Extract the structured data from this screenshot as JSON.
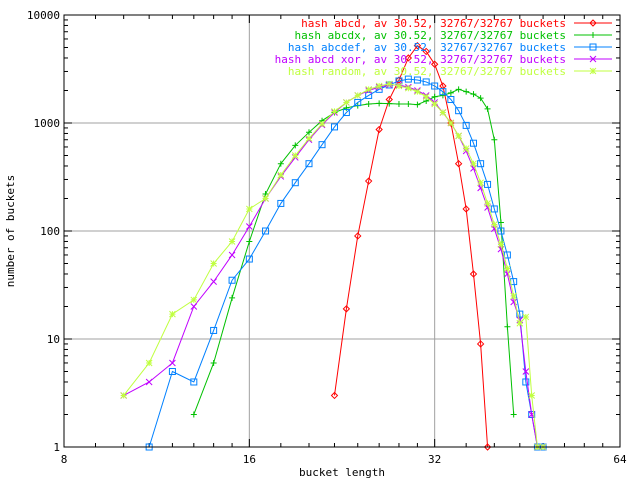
{
  "chart_data": {
    "type": "line",
    "title": "",
    "xlabel": "bucket length",
    "ylabel": "number of buckets",
    "x_scale": "log2",
    "y_scale": "log10",
    "xlim": [
      8,
      64
    ],
    "ylim": [
      1,
      10000
    ],
    "x_ticks": [
      {
        "value": 8,
        "label": "8"
      },
      {
        "value": 16,
        "label": "16"
      },
      {
        "value": 32,
        "label": "32"
      },
      {
        "value": 64,
        "label": "64"
      }
    ],
    "y_ticks": [
      {
        "value": 1,
        "label": "1"
      },
      {
        "value": 10,
        "label": "10"
      },
      {
        "value": 100,
        "label": "100"
      },
      {
        "value": 1000,
        "label": "1000"
      },
      {
        "value": 10000,
        "label": "10000"
      }
    ],
    "grid": true,
    "legend_position": "top-right",
    "series": [
      {
        "name": "hash abcd, av 30.52, 32767/32767 buckets",
        "color": "#ff0000",
        "marker": "diamond",
        "points": [
          [
            22,
            3
          ],
          [
            23,
            19
          ],
          [
            24,
            90
          ],
          [
            25,
            290
          ],
          [
            26,
            870
          ],
          [
            27,
            1650
          ],
          [
            28,
            2500
          ],
          [
            29,
            4000
          ],
          [
            30,
            5200
          ],
          [
            31,
            4600
          ],
          [
            32,
            3500
          ],
          [
            33,
            2200
          ],
          [
            34,
            1000
          ],
          [
            35,
            420
          ],
          [
            36,
            160
          ],
          [
            37,
            40
          ],
          [
            38,
            9
          ],
          [
            39,
            1
          ]
        ]
      },
      {
        "name": "hash abcdx, av 30.52, 32767/32767 buckets",
        "color": "#00c000",
        "marker": "plus",
        "points": [
          [
            13,
            2
          ],
          [
            14,
            6
          ],
          [
            15,
            24
          ],
          [
            16,
            80
          ],
          [
            17,
            220
          ],
          [
            18,
            420
          ],
          [
            19,
            620
          ],
          [
            20,
            820
          ],
          [
            21,
            1050
          ],
          [
            22,
            1250
          ],
          [
            23,
            1380
          ],
          [
            24,
            1450
          ],
          [
            25,
            1500
          ],
          [
            26,
            1520
          ],
          [
            27,
            1510
          ],
          [
            28,
            1500
          ],
          [
            29,
            1500
          ],
          [
            30,
            1480
          ],
          [
            31,
            1600
          ],
          [
            32,
            1750
          ],
          [
            33,
            1800
          ],
          [
            34,
            1900
          ],
          [
            35,
            2050
          ],
          [
            36,
            1950
          ],
          [
            37,
            1850
          ],
          [
            38,
            1700
          ],
          [
            39,
            1350
          ],
          [
            40,
            700
          ],
          [
            41,
            120
          ],
          [
            42,
            13
          ],
          [
            43,
            2
          ]
        ]
      },
      {
        "name": "hash abcdef, av 30.52, 32767/32767 buckets",
        "color": "#0080ff",
        "marker": "square",
        "points": [
          [
            11,
            1
          ],
          [
            12,
            5
          ],
          [
            13,
            4
          ],
          [
            14,
            12
          ],
          [
            15,
            35
          ],
          [
            16,
            55
          ],
          [
            17,
            100
          ],
          [
            18,
            180
          ],
          [
            19,
            280
          ],
          [
            20,
            420
          ],
          [
            21,
            630
          ],
          [
            22,
            920
          ],
          [
            23,
            1250
          ],
          [
            24,
            1550
          ],
          [
            25,
            1800
          ],
          [
            26,
            2050
          ],
          [
            27,
            2250
          ],
          [
            28,
            2450
          ],
          [
            29,
            2550
          ],
          [
            30,
            2500
          ],
          [
            31,
            2400
          ],
          [
            32,
            2200
          ],
          [
            33,
            1950
          ],
          [
            34,
            1650
          ],
          [
            35,
            1300
          ],
          [
            36,
            950
          ],
          [
            37,
            650
          ],
          [
            38,
            420
          ],
          [
            39,
            270
          ],
          [
            40,
            160
          ],
          [
            41,
            100
          ],
          [
            42,
            60
          ],
          [
            43,
            34
          ],
          [
            44,
            17
          ],
          [
            45,
            4
          ],
          [
            46,
            2
          ],
          [
            47,
            1
          ],
          [
            48,
            1
          ]
        ]
      },
      {
        "name": "hash abcd xor, av 30.52, 32767/32767 buckets",
        "color": "#c000ff",
        "marker": "cross",
        "points": [
          [
            10,
            3
          ],
          [
            11,
            4
          ],
          [
            12,
            6
          ],
          [
            13,
            20
          ],
          [
            14,
            34
          ],
          [
            15,
            60
          ],
          [
            16,
            110
          ],
          [
            17,
            200
          ],
          [
            18,
            320
          ],
          [
            19,
            480
          ],
          [
            20,
            700
          ],
          [
            21,
            960
          ],
          [
            22,
            1250
          ],
          [
            23,
            1550
          ],
          [
            24,
            1800
          ],
          [
            25,
            2000
          ],
          [
            26,
            2150
          ],
          [
            27,
            2250
          ],
          [
            28,
            2250
          ],
          [
            29,
            2150
          ],
          [
            30,
            2000
          ],
          [
            31,
            1800
          ],
          [
            32,
            1550
          ],
          [
            33,
            1250
          ],
          [
            34,
            1000
          ],
          [
            35,
            760
          ],
          [
            36,
            550
          ],
          [
            37,
            380
          ],
          [
            38,
            250
          ],
          [
            39,
            165
          ],
          [
            40,
            105
          ],
          [
            41,
            68
          ],
          [
            42,
            40
          ],
          [
            43,
            22
          ],
          [
            44,
            15
          ],
          [
            45,
            5
          ],
          [
            46,
            2
          ],
          [
            47,
            1
          ],
          [
            48,
            1
          ]
        ]
      },
      {
        "name": "hash random, av 30.52, 32767/32767 buckets",
        "color": "#c0ff40",
        "marker": "star",
        "points": [
          [
            10,
            3
          ],
          [
            11,
            6
          ],
          [
            12,
            17
          ],
          [
            13,
            23
          ],
          [
            14,
            50
          ],
          [
            15,
            80
          ],
          [
            16,
            160
          ],
          [
            17,
            200
          ],
          [
            18,
            330
          ],
          [
            19,
            500
          ],
          [
            20,
            720
          ],
          [
            21,
            980
          ],
          [
            22,
            1280
          ],
          [
            23,
            1550
          ],
          [
            24,
            1800
          ],
          [
            25,
            2050
          ],
          [
            26,
            2200
          ],
          [
            27,
            2300
          ],
          [
            28,
            2200
          ],
          [
            29,
            2100
          ],
          [
            30,
            1950
          ],
          [
            31,
            1750
          ],
          [
            32,
            1500
          ],
          [
            33,
            1250
          ],
          [
            34,
            1000
          ],
          [
            35,
            760
          ],
          [
            36,
            580
          ],
          [
            37,
            420
          ],
          [
            38,
            280
          ],
          [
            39,
            180
          ],
          [
            40,
            115
          ],
          [
            41,
            75
          ],
          [
            42,
            45
          ],
          [
            43,
            25
          ],
          [
            44,
            14
          ],
          [
            45,
            16
          ],
          [
            46,
            3
          ],
          [
            47,
            1
          ],
          [
            48,
            1
          ]
        ]
      }
    ]
  }
}
